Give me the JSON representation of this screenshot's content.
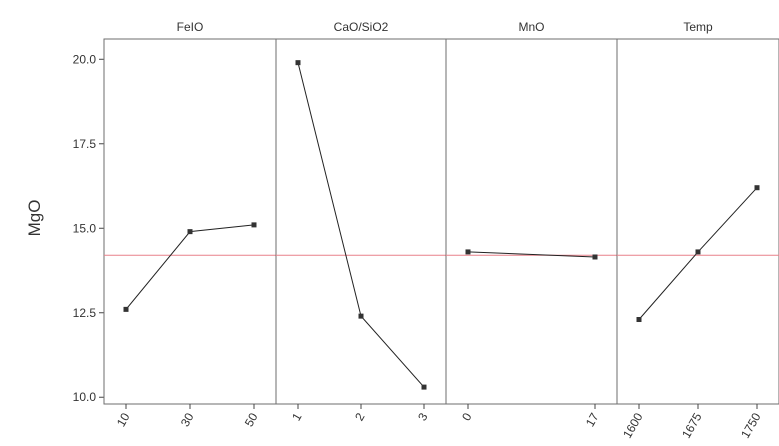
{
  "chart_data": {
    "type": "line",
    "title": "",
    "ylabel": "MgO",
    "ylim": [
      9.8,
      20.6
    ],
    "yticks": [
      "10.0",
      "12.5",
      "15.0",
      "17.5",
      "20.0"
    ],
    "reference_line": {
      "y": 14.2,
      "color": "#e8808a"
    },
    "grid": false,
    "panels": [
      {
        "name": "FeIO",
        "categories": [
          "10",
          "30",
          "50"
        ],
        "values": [
          12.6,
          14.9,
          15.1
        ]
      },
      {
        "name": "CaO/SiO2",
        "categories": [
          "1",
          "2",
          "3"
        ],
        "values": [
          19.9,
          12.4,
          10.3
        ]
      },
      {
        "name": "MnO",
        "categories": [
          "0",
          "17"
        ],
        "values": [
          14.3,
          14.15
        ]
      },
      {
        "name": "Temp",
        "categories": [
          "1600",
          "1675",
          "1750"
        ],
        "values": [
          12.3,
          14.3,
          16.2
        ]
      }
    ]
  },
  "colors": {
    "line": "#222222",
    "point": "#333333",
    "reference": "#e8808a",
    "frame": "#6e6e6e"
  }
}
